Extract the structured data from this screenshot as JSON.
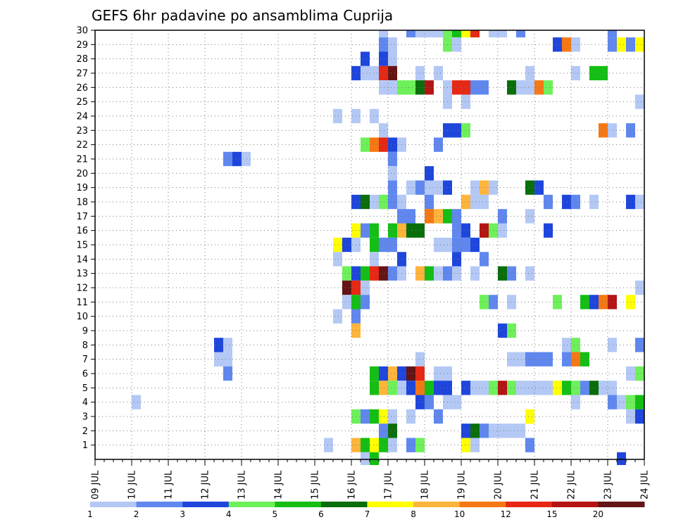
{
  "chart_data": {
    "type": "heatmap",
    "title": "GEFS 6hr padavine po ansamblima Cuprija",
    "xlabel": "",
    "ylabel": "",
    "x_ticks": [
      "09 JUL",
      "10 JUL",
      "11 JUL",
      "12 JUL",
      "13 JUL",
      "14 JUL",
      "15 JUL",
      "16 JUL",
      "17 JUL",
      "18 JUL",
      "19 JUL",
      "20 JUL",
      "21 JUL",
      "22 JUL",
      "23 JUL",
      "24 JUL"
    ],
    "y_ticks": [
      1,
      2,
      3,
      4,
      5,
      6,
      7,
      8,
      9,
      10,
      11,
      12,
      13,
      14,
      15,
      16,
      17,
      18,
      19,
      20,
      21,
      22,
      23,
      24,
      25,
      26,
      27,
      28,
      29,
      30
    ],
    "ylim": [
      0,
      30
    ],
    "grid": true,
    "legend_position": "bottom",
    "legend": {
      "labels": [
        "1",
        "2",
        "3",
        "4",
        "5",
        "6",
        "7",
        "8",
        "10",
        "12",
        "15",
        "20"
      ],
      "colors": [
        "#b4c8f5",
        "#5f87ee",
        "#1e46dc",
        "#6ef05a",
        "#14be14",
        "#0a6e0a",
        "#ffff00",
        "#ffb43c",
        "#f57814",
        "#e62814",
        "#b41414",
        "#641414"
      ]
    },
    "value_colors": {
      "1": "#b4c8f5",
      "2": "#5f87ee",
      "3": "#1e46dc",
      "4": "#6ef05a",
      "5": "#14be14",
      "6": "#0a6e0a",
      "7": "#ffff00",
      "8": "#ffb43c",
      "9": "#f57814",
      "10": "#e62814",
      "11": "#b41414",
      "12": "#641414"
    },
    "rows": [
      {
        "member": 30,
        "cells": [
          [
            7.75,
            1
          ],
          [
            8.5,
            2
          ],
          [
            8.75,
            1
          ],
          [
            9.0,
            1
          ],
          [
            9.25,
            1
          ],
          [
            9.5,
            4
          ],
          [
            9.75,
            5
          ],
          [
            10.0,
            7
          ],
          [
            10.25,
            10
          ],
          [
            10.75,
            1
          ],
          [
            11.0,
            1
          ],
          [
            11.5,
            2
          ],
          [
            14.0,
            2
          ]
        ]
      },
      {
        "member": 29,
        "cells": [
          [
            7.75,
            2
          ],
          [
            8.0,
            1
          ],
          [
            9.5,
            4
          ],
          [
            9.75,
            1
          ],
          [
            12.5,
            3
          ],
          [
            12.75,
            9
          ],
          [
            13.0,
            1
          ],
          [
            14.0,
            2
          ],
          [
            14.25,
            7
          ],
          [
            14.5,
            2
          ],
          [
            14.75,
            7
          ]
        ]
      },
      {
        "member": 28,
        "cells": [
          [
            7.25,
            3
          ],
          [
            7.75,
            3
          ],
          [
            8.0,
            1
          ]
        ]
      },
      {
        "member": 27,
        "cells": [
          [
            7.0,
            3
          ],
          [
            7.25,
            1
          ],
          [
            7.5,
            1
          ],
          [
            7.75,
            10
          ],
          [
            8.0,
            12
          ],
          [
            8.75,
            1
          ],
          [
            9.25,
            1
          ],
          [
            11.75,
            1
          ],
          [
            13.0,
            1
          ],
          [
            13.5,
            5
          ],
          [
            13.75,
            5
          ]
        ]
      },
      {
        "member": 26,
        "cells": [
          [
            7.75,
            1
          ],
          [
            8.0,
            1
          ],
          [
            8.25,
            4
          ],
          [
            8.5,
            4
          ],
          [
            8.75,
            6
          ],
          [
            9.0,
            11
          ],
          [
            9.5,
            1
          ],
          [
            9.75,
            10
          ],
          [
            10.0,
            10
          ],
          [
            10.25,
            2
          ],
          [
            10.5,
            2
          ],
          [
            11.25,
            6
          ],
          [
            11.5,
            1
          ],
          [
            11.75,
            1
          ],
          [
            12.0,
            9
          ],
          [
            12.25,
            4
          ]
        ]
      },
      {
        "member": 25,
        "cells": [
          [
            9.5,
            1
          ],
          [
            10.0,
            1
          ],
          [
            14.75,
            1
          ]
        ]
      },
      {
        "member": 24,
        "cells": [
          [
            6.5,
            1
          ],
          [
            7.0,
            1
          ],
          [
            7.5,
            1
          ]
        ]
      },
      {
        "member": 23,
        "cells": [
          [
            7.75,
            1
          ],
          [
            9.5,
            3
          ],
          [
            9.75,
            3
          ],
          [
            10.0,
            4
          ],
          [
            13.75,
            9
          ],
          [
            14.0,
            1
          ],
          [
            14.5,
            2
          ]
        ]
      },
      {
        "member": 22,
        "cells": [
          [
            7.25,
            4
          ],
          [
            7.5,
            9
          ],
          [
            7.75,
            10
          ],
          [
            8.0,
            3
          ],
          [
            8.25,
            1
          ],
          [
            9.25,
            2
          ]
        ]
      },
      {
        "member": 21,
        "cells": [
          [
            3.5,
            2
          ],
          [
            3.75,
            3
          ],
          [
            4.0,
            1
          ],
          [
            8.0,
            2
          ]
        ]
      },
      {
        "member": 20,
        "cells": [
          [
            8.0,
            1
          ],
          [
            9.0,
            3
          ]
        ]
      },
      {
        "member": 19,
        "cells": [
          [
            8.0,
            2
          ],
          [
            8.5,
            1
          ],
          [
            8.75,
            2
          ],
          [
            9.0,
            1
          ],
          [
            9.25,
            1
          ],
          [
            9.5,
            3
          ],
          [
            10.25,
            1
          ],
          [
            10.5,
            8
          ],
          [
            10.75,
            1
          ],
          [
            11.75,
            6
          ],
          [
            12.0,
            3
          ]
        ]
      },
      {
        "member": 18,
        "cells": [
          [
            7.0,
            3
          ],
          [
            7.25,
            6
          ],
          [
            7.5,
            1
          ],
          [
            7.75,
            4
          ],
          [
            8.0,
            2
          ],
          [
            8.25,
            1
          ],
          [
            9.0,
            2
          ],
          [
            10.0,
            8
          ],
          [
            10.25,
            1
          ],
          [
            10.5,
            1
          ],
          [
            12.25,
            2
          ],
          [
            12.75,
            3
          ],
          [
            13.0,
            2
          ],
          [
            13.5,
            1
          ],
          [
            14.5,
            3
          ],
          [
            14.75,
            1
          ]
        ]
      },
      {
        "member": 17,
        "cells": [
          [
            8.25,
            2
          ],
          [
            8.5,
            2
          ],
          [
            9.0,
            9
          ],
          [
            9.25,
            8
          ],
          [
            9.5,
            5
          ],
          [
            9.75,
            2
          ],
          [
            11.0,
            2
          ],
          [
            11.75,
            1
          ]
        ]
      },
      {
        "member": 16,
        "cells": [
          [
            7.0,
            7
          ],
          [
            7.25,
            2
          ],
          [
            7.5,
            5
          ],
          [
            8.0,
            5
          ],
          [
            8.25,
            8
          ],
          [
            8.5,
            6
          ],
          [
            8.75,
            6
          ],
          [
            9.75,
            2
          ],
          [
            10.0,
            3
          ],
          [
            10.5,
            11
          ],
          [
            10.75,
            4
          ],
          [
            11.0,
            1
          ],
          [
            12.25,
            3
          ]
        ]
      },
      {
        "member": 15,
        "cells": [
          [
            6.5,
            7
          ],
          [
            6.75,
            3
          ],
          [
            7.0,
            1
          ],
          [
            7.5,
            5
          ],
          [
            7.75,
            2
          ],
          [
            8.0,
            2
          ],
          [
            9.25,
            1
          ],
          [
            9.5,
            1
          ],
          [
            9.75,
            2
          ],
          [
            10.0,
            2
          ],
          [
            10.25,
            3
          ]
        ]
      },
      {
        "member": 14,
        "cells": [
          [
            6.5,
            1
          ],
          [
            7.5,
            1
          ],
          [
            8.25,
            3
          ],
          [
            9.75,
            3
          ],
          [
            10.5,
            2
          ]
        ]
      },
      {
        "member": 13,
        "cells": [
          [
            6.75,
            4
          ],
          [
            7.0,
            3
          ],
          [
            7.25,
            5
          ],
          [
            7.5,
            10
          ],
          [
            7.75,
            12
          ],
          [
            8.0,
            2
          ],
          [
            8.25,
            1
          ],
          [
            8.75,
            8
          ],
          [
            9.0,
            5
          ],
          [
            9.25,
            1
          ],
          [
            9.5,
            2
          ],
          [
            9.75,
            1
          ],
          [
            10.25,
            1
          ],
          [
            11.0,
            6
          ],
          [
            11.25,
            2
          ],
          [
            11.75,
            1
          ]
        ]
      },
      {
        "member": 12,
        "cells": [
          [
            6.75,
            12
          ],
          [
            7.0,
            10
          ],
          [
            7.25,
            1
          ],
          [
            14.75,
            1
          ]
        ]
      },
      {
        "member": 11,
        "cells": [
          [
            6.75,
            1
          ],
          [
            7.0,
            5
          ],
          [
            7.25,
            2
          ],
          [
            10.5,
            4
          ],
          [
            10.75,
            2
          ],
          [
            11.25,
            1
          ],
          [
            12.5,
            4
          ],
          [
            13.25,
            5
          ],
          [
            13.5,
            3
          ],
          [
            13.75,
            9
          ],
          [
            14.0,
            11
          ],
          [
            14.5,
            7
          ]
        ]
      },
      {
        "member": 10,
        "cells": [
          [
            6.5,
            1
          ],
          [
            7.0,
            2
          ]
        ]
      },
      {
        "member": 9,
        "cells": [
          [
            7.0,
            8
          ],
          [
            11.0,
            3
          ],
          [
            11.25,
            4
          ]
        ]
      },
      {
        "member": 8,
        "cells": [
          [
            3.25,
            3
          ],
          [
            3.5,
            1
          ],
          [
            12.75,
            1
          ],
          [
            13.0,
            4
          ],
          [
            14.0,
            1
          ],
          [
            14.75,
            2
          ]
        ]
      },
      {
        "member": 7,
        "cells": [
          [
            3.25,
            1
          ],
          [
            3.5,
            1
          ],
          [
            8.75,
            1
          ],
          [
            11.25,
            1
          ],
          [
            11.5,
            1
          ],
          [
            11.75,
            2
          ],
          [
            12.0,
            2
          ],
          [
            12.25,
            2
          ],
          [
            12.75,
            2
          ],
          [
            13.0,
            9
          ],
          [
            13.25,
            5
          ]
        ]
      },
      {
        "member": 6,
        "cells": [
          [
            3.5,
            2
          ],
          [
            7.5,
            5
          ],
          [
            7.75,
            3
          ],
          [
            8.0,
            8
          ],
          [
            8.25,
            3
          ],
          [
            8.5,
            12
          ],
          [
            8.75,
            10
          ],
          [
            9.25,
            1
          ],
          [
            9.5,
            1
          ],
          [
            14.5,
            1
          ],
          [
            14.75,
            4
          ]
        ]
      },
      {
        "member": 5,
        "cells": [
          [
            7.5,
            5
          ],
          [
            7.75,
            8
          ],
          [
            8.0,
            4
          ],
          [
            8.25,
            1
          ],
          [
            8.5,
            3
          ],
          [
            8.75,
            9
          ],
          [
            9.0,
            5
          ],
          [
            9.25,
            3
          ],
          [
            9.5,
            3
          ],
          [
            10.0,
            3
          ],
          [
            10.25,
            1
          ],
          [
            10.5,
            1
          ],
          [
            10.75,
            4
          ],
          [
            11.0,
            11
          ],
          [
            11.25,
            4
          ],
          [
            11.5,
            1
          ],
          [
            11.75,
            1
          ],
          [
            12.0,
            1
          ],
          [
            12.25,
            1
          ],
          [
            12.5,
            7
          ],
          [
            12.75,
            5
          ],
          [
            13.0,
            4
          ],
          [
            13.25,
            2
          ],
          [
            13.5,
            6
          ],
          [
            13.75,
            1
          ],
          [
            14.0,
            1
          ]
        ]
      },
      {
        "member": 4,
        "cells": [
          [
            1.0,
            1
          ],
          [
            8.75,
            3
          ],
          [
            9.0,
            2
          ],
          [
            9.5,
            1
          ],
          [
            9.75,
            1
          ],
          [
            13.0,
            1
          ],
          [
            14.0,
            2
          ],
          [
            14.25,
            1
          ],
          [
            14.5,
            4
          ],
          [
            14.75,
            5
          ]
        ]
      },
      {
        "member": 3,
        "cells": [
          [
            7.0,
            4
          ],
          [
            7.25,
            2
          ],
          [
            7.5,
            5
          ],
          [
            7.75,
            7
          ],
          [
            8.0,
            1
          ],
          [
            8.5,
            1
          ],
          [
            9.25,
            2
          ],
          [
            11.75,
            7
          ],
          [
            14.5,
            1
          ],
          [
            14.75,
            3
          ]
        ]
      },
      {
        "member": 2,
        "cells": [
          [
            7.75,
            2
          ],
          [
            8.0,
            6
          ],
          [
            10.0,
            3
          ],
          [
            10.25,
            6
          ],
          [
            10.5,
            2
          ],
          [
            10.75,
            1
          ],
          [
            11.0,
            1
          ],
          [
            11.25,
            1
          ],
          [
            11.5,
            1
          ]
        ]
      },
      {
        "member": 1,
        "cells": [
          [
            6.25,
            1
          ],
          [
            7.0,
            8
          ],
          [
            7.25,
            5
          ],
          [
            7.5,
            7
          ],
          [
            7.75,
            5
          ],
          [
            8.0,
            1
          ],
          [
            8.5,
            2
          ],
          [
            8.75,
            4
          ],
          [
            10.0,
            7
          ],
          [
            10.25,
            1
          ],
          [
            11.75,
            2
          ]
        ]
      },
      {
        "member": 0,
        "cells": [
          [
            7.25,
            1
          ],
          [
            7.5,
            5
          ],
          [
            14.25,
            3
          ]
        ]
      }
    ]
  }
}
